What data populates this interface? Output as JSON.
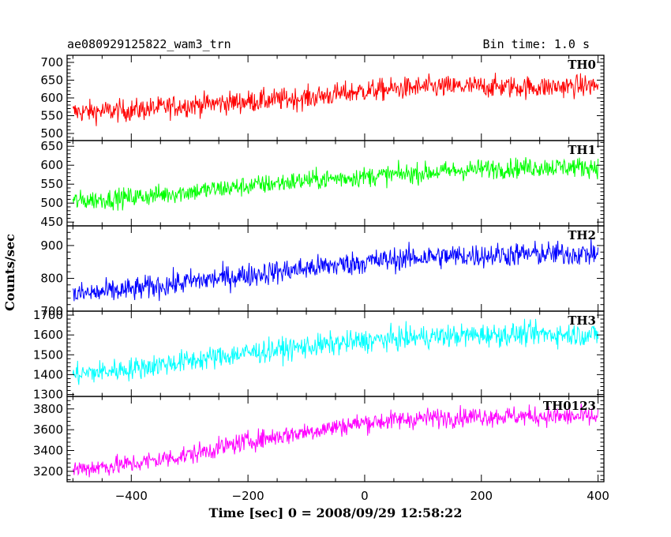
{
  "header": {
    "title": "ae080929125822_wam3_trn",
    "bin_time": "Bin time: 1.0 s"
  },
  "axes": {
    "xlabel": "Time [sec] 0 = 2008/09/29 12:58:22",
    "ylabel": "Counts/sec"
  },
  "chart_data": {
    "type": "line",
    "title": "ae080929125822_wam3_trn",
    "xlabel": "Time [sec] 0 = 2008/09/29 12:58:22",
    "ylabel": "Counts/sec",
    "xlim": [
      -510,
      410
    ],
    "x_ticks": [
      -400,
      -200,
      0,
      200,
      400
    ],
    "grid": false,
    "shared_x": true,
    "series": [
      {
        "name": "TH0",
        "color": "#ff0000",
        "ylim": [
          480,
          720
        ],
        "y_ticks": [
          500,
          550,
          600,
          650,
          700
        ],
        "x": [
          -500,
          -400,
          -300,
          -200,
          -100,
          0,
          100,
          200,
          300,
          400
        ],
        "values": [
          560,
          565,
          580,
          590,
          600,
          620,
          630,
          632,
          630,
          635
        ],
        "noise": 30
      },
      {
        "name": "TH1",
        "color": "#00ff00",
        "ylim": [
          440,
          665
        ],
        "y_ticks": [
          450,
          500,
          550,
          600,
          650
        ],
        "x": [
          -500,
          -400,
          -300,
          -200,
          -100,
          0,
          100,
          200,
          300,
          400
        ],
        "values": [
          505,
          515,
          530,
          545,
          560,
          570,
          580,
          590,
          595,
          595
        ],
        "noise": 25
      },
      {
        "name": "TH2",
        "color": "#0000ff",
        "ylim": [
          700,
          960
        ],
        "y_ticks": [
          700,
          800,
          900
        ],
        "x": [
          -500,
          -400,
          -300,
          -200,
          -100,
          0,
          100,
          200,
          300,
          400
        ],
        "values": [
          750,
          765,
          790,
          810,
          830,
          850,
          865,
          870,
          875,
          875
        ],
        "noise": 35
      },
      {
        "name": "TH3",
        "color": "#00ffff",
        "ylim": [
          1290,
          1720
        ],
        "y_ticks": [
          1300,
          1400,
          1500,
          1600,
          1700
        ],
        "x": [
          -500,
          -400,
          -300,
          -200,
          -100,
          0,
          100,
          200,
          300,
          400
        ],
        "values": [
          1400,
          1430,
          1470,
          1510,
          1540,
          1570,
          1590,
          1600,
          1605,
          1600
        ],
        "noise": 55
      },
      {
        "name": "TH0123",
        "color": "#ff00ff",
        "ylim": [
          3100,
          3920
        ],
        "y_ticks": [
          3200,
          3400,
          3600,
          3800
        ],
        "x": [
          -500,
          -400,
          -300,
          -200,
          -100,
          0,
          100,
          200,
          300,
          400
        ],
        "values": [
          3220,
          3270,
          3360,
          3490,
          3580,
          3670,
          3710,
          3730,
          3730,
          3720
        ],
        "noise": 90
      }
    ]
  }
}
